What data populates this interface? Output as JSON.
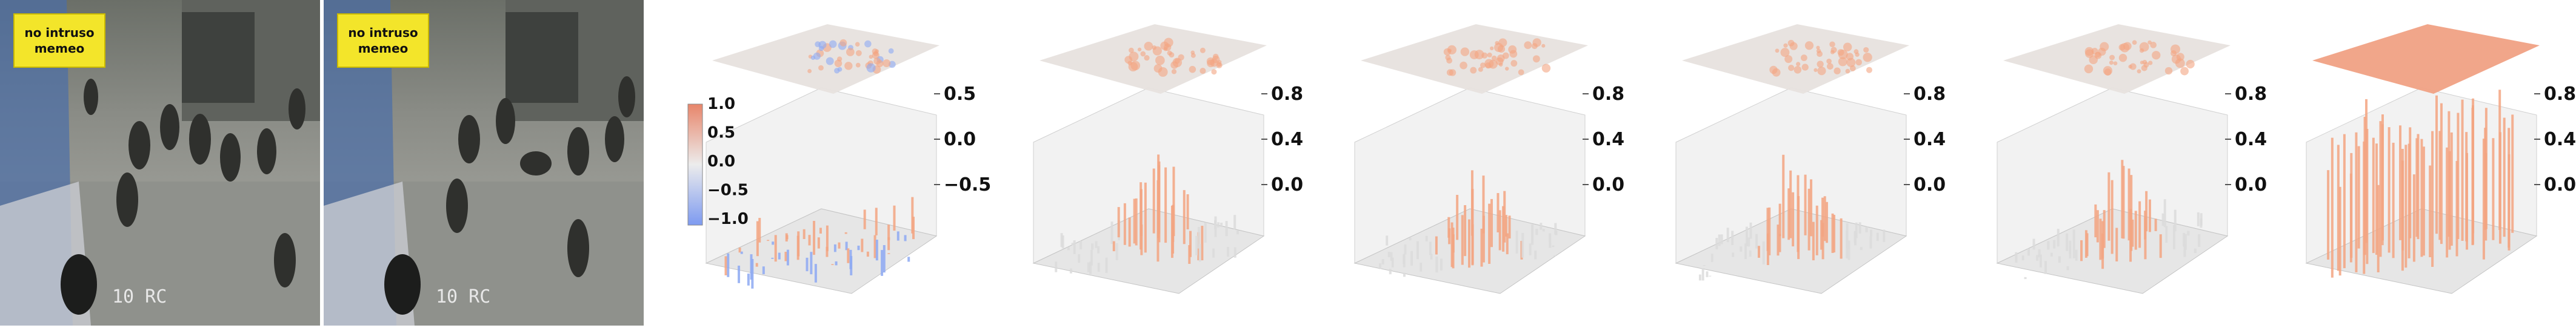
{
  "frames": [
    {
      "id": "frame-1",
      "stamp_lines": [
        "no intruso",
        "memeo"
      ],
      "corner_text": "10 RC"
    },
    {
      "id": "frame-2",
      "stamp_lines": [
        "no intruso",
        "memeo"
      ],
      "corner_text": "10 RC"
    }
  ],
  "colors": {
    "positive": "#f4a582",
    "negative": "#8eaaf3",
    "neutral": "#dcdcdc",
    "plane": "#e7e1de",
    "hot_plane": "#f0a184"
  },
  "chart_data": [
    {
      "type": "surface3d",
      "panel": 1,
      "zticks": [
        "0.5",
        "0.0",
        "−0.5"
      ],
      "colorbar": {
        "ticks": [
          "1.0",
          "0.5",
          "0.0",
          "−0.5",
          "−1.0"
        ],
        "range": [
          -1.0,
          1.0
        ]
      },
      "zlim": [
        -1.0,
        1.0
      ]
    },
    {
      "type": "surface3d",
      "panel": 2,
      "zticks": [
        "0.8",
        "0.4",
        "0.0"
      ],
      "zlim": [
        0.0,
        1.0
      ],
      "intensity": 0.55
    },
    {
      "type": "surface3d",
      "panel": 3,
      "zticks": [
        "0.8",
        "0.4",
        "0.0"
      ],
      "zlim": [
        0.0,
        1.0
      ],
      "intensity": 0.5
    },
    {
      "type": "surface3d",
      "panel": 4,
      "zticks": [
        "0.8",
        "0.4",
        "0.0"
      ],
      "zlim": [
        0.0,
        1.0
      ],
      "intensity": 0.6
    },
    {
      "type": "surface3d",
      "panel": 5,
      "zticks": [
        "0.8",
        "0.4",
        "0.0"
      ],
      "zlim": [
        0.0,
        1.0
      ],
      "intensity": 0.55
    },
    {
      "type": "surface3d",
      "panel": 6,
      "zticks": [
        "0.8",
        "0.4",
        "0.0"
      ],
      "zlim": [
        0.0,
        1.0
      ],
      "intensity": 0.9
    }
  ]
}
